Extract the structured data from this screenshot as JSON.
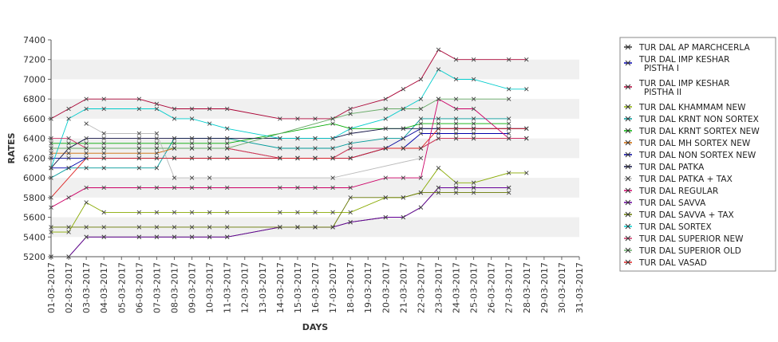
{
  "chart_data": {
    "type": "line",
    "title": "",
    "xlabel": "DAYS",
    "ylabel": "RATES",
    "ylim": [
      5200,
      7400
    ],
    "yticks": [
      5200,
      5400,
      5600,
      5800,
      6000,
      6200,
      6400,
      6600,
      6800,
      7000,
      7200,
      7400
    ],
    "grid": "horizontal alternating bands",
    "legend_position": "right",
    "categories": [
      "01-03-2017",
      "02-03-2017",
      "03-03-2017",
      "04-03-2017",
      "05-03-2017",
      "06-03-2017",
      "07-03-2017",
      "08-03-2017",
      "09-03-2017",
      "10-03-2017",
      "11-03-2017",
      "12-03-2017",
      "13-03-2017",
      "14-03-2017",
      "15-03-2017",
      "16-03-2017",
      "17-03-2017",
      "18-03-2017",
      "19-03-2017",
      "20-03-2017",
      "21-03-2017",
      "22-03-2017",
      "23-03-2017",
      "24-03-2017",
      "25-03-2017",
      "26-03-2017",
      "27-03-2017",
      "28-03-2017",
      "29-03-2017",
      "30-03-2017",
      "31-03-2017"
    ],
    "series": [
      {
        "name": "TUR DAL AP MARCHCERLA",
        "color": "#333333",
        "values": [
          5200,
          5200,
          5400,
          5400,
          null,
          5400,
          5400,
          5400,
          5400,
          5400,
          5400,
          null,
          null,
          5500,
          5500,
          5500,
          5500,
          5550,
          null,
          5600,
          5600,
          5700,
          5900,
          5900,
          5900,
          null,
          5900,
          null,
          null,
          null,
          null
        ]
      },
      {
        "name": "TUR DAL IMP KESHAR PISTHA I",
        "color": "#0000aa",
        "values": [
          6100,
          6100,
          6200,
          6200,
          null,
          6200,
          6200,
          6200,
          6200,
          6200,
          6200,
          null,
          null,
          6200,
          6200,
          6200,
          6200,
          6200,
          null,
          6300,
          6300,
          6450,
          6450,
          6450,
          6450,
          null,
          6450,
          null,
          null,
          null,
          null
        ]
      },
      {
        "name": "TUR DAL IMP KESHAR PISTHA II",
        "color": "#aa0033",
        "values": [
          6600,
          6700,
          6800,
          6800,
          null,
          6800,
          6750,
          6700,
          6700,
          6700,
          6700,
          null,
          null,
          6600,
          6600,
          6600,
          6600,
          6700,
          null,
          6800,
          6900,
          7000,
          7300,
          7200,
          7200,
          null,
          7200,
          7200,
          null,
          null,
          null
        ]
      },
      {
        "name": "TUR DAL KHAMMAM NEW",
        "color": "#88aa00",
        "values": [
          5450,
          5450,
          5750,
          5650,
          null,
          5650,
          5650,
          5650,
          5650,
          5650,
          5650,
          null,
          null,
          5650,
          5650,
          5650,
          5650,
          5650,
          null,
          5800,
          5800,
          5850,
          6100,
          5950,
          5950,
          null,
          6050,
          6050,
          null,
          null,
          null
        ]
      },
      {
        "name": "TUR DAL KRNT NON SORTEX",
        "color": "#009999",
        "values": [
          6000,
          6100,
          6100,
          6100,
          null,
          6100,
          6100,
          6400,
          6400,
          6400,
          6400,
          null,
          null,
          6300,
          6300,
          6300,
          6300,
          6350,
          null,
          6400,
          6400,
          6600,
          6600,
          6600,
          6600,
          null,
          6600,
          null,
          null,
          null,
          null
        ]
      },
      {
        "name": "TUR DAL KRNT SORTEX NEW",
        "color": "#00aa00",
        "values": [
          6350,
          6350,
          6350,
          6350,
          null,
          6350,
          6350,
          6350,
          6350,
          6350,
          6350,
          null,
          null,
          null,
          null,
          null,
          6550,
          6500,
          null,
          null,
          6500,
          6550,
          6550,
          6550,
          6550,
          null,
          6550,
          null,
          null,
          null,
          null
        ]
      },
      {
        "name": "TUR DAL MH SORTEX NEW",
        "color": "#cc6600",
        "values": [
          6250,
          6250,
          6250,
          6250,
          null,
          6250,
          6250,
          6300,
          6300,
          6300,
          6300,
          null,
          null,
          6200,
          6200,
          6200,
          6200,
          6300,
          null,
          6300,
          6300,
          6300,
          6400,
          6400,
          6400,
          null,
          6400,
          6400,
          null,
          null,
          null
        ]
      },
      {
        "name": "TUR DAL NON SORTEX NEW",
        "color": "#000099",
        "values": [
          6200,
          6200,
          6200,
          6200,
          null,
          6200,
          6200,
          6200,
          6200,
          6200,
          6200,
          null,
          null,
          6200,
          6200,
          6200,
          6200,
          6200,
          null,
          6300,
          6400,
          6500,
          6500,
          6500,
          6500,
          null,
          6500,
          6500,
          null,
          null,
          null
        ]
      },
      {
        "name": "TUR DAL PATKA",
        "color": "#111144",
        "values": [
          6100,
          6300,
          6400,
          6400,
          null,
          6400,
          6400,
          6400,
          6400,
          6400,
          6400,
          null,
          null,
          6400,
          6400,
          6400,
          6400,
          6450,
          null,
          6500,
          6500,
          6500,
          6500,
          6500,
          6500,
          null,
          6500,
          6500,
          null,
          null,
          null
        ]
      },
      {
        "name": "TUR DAL PATKA + TAX",
        "color": "#bbbbbb",
        "values": [
          null,
          null,
          6550,
          6450,
          null,
          6450,
          6450,
          6000,
          6000,
          6000,
          null,
          null,
          null,
          null,
          null,
          null,
          6000,
          null,
          null,
          null,
          null,
          6200,
          null,
          null,
          null,
          null,
          null,
          null,
          null,
          null,
          null
        ]
      },
      {
        "name": "TUR DAL REGULAR",
        "color": "#cc0066",
        "values": [
          5700,
          5800,
          5900,
          5900,
          null,
          5900,
          5900,
          5900,
          5900,
          5900,
          5900,
          null,
          null,
          5900,
          5900,
          5900,
          5900,
          5900,
          null,
          6000,
          6000,
          6000,
          6800,
          6700,
          6700,
          null,
          6400,
          6400,
          null,
          null,
          null
        ]
      },
      {
        "name": "TUR DAL SAVVA",
        "color": "#660099",
        "values": [
          5200,
          5200,
          5400,
          5400,
          null,
          5400,
          5400,
          5400,
          5400,
          5400,
          5400,
          null,
          null,
          5500,
          5500,
          5500,
          5500,
          5550,
          null,
          5600,
          5600,
          5700,
          5900,
          5900,
          5900,
          null,
          5900,
          null,
          null,
          null,
          null
        ]
      },
      {
        "name": "TUR DAL SAVVA + TAX",
        "color": "#667700",
        "values": [
          5500,
          5500,
          5500,
          5500,
          null,
          5500,
          5500,
          5500,
          5500,
          5500,
          5500,
          null,
          null,
          5500,
          5500,
          5500,
          5500,
          5800,
          null,
          5800,
          5800,
          5850,
          5850,
          5850,
          5850,
          null,
          5850,
          null,
          null,
          null,
          null
        ]
      },
      {
        "name": "TUR DAL SORTEX",
        "color": "#00cccc",
        "values": [
          6100,
          6600,
          6700,
          6700,
          null,
          6700,
          6700,
          6600,
          6600,
          6550,
          6500,
          null,
          null,
          6400,
          6400,
          6400,
          6400,
          6500,
          null,
          6600,
          6700,
          6800,
          7100,
          7000,
          7000,
          null,
          6900,
          6900,
          null,
          null,
          null
        ]
      },
      {
        "name": "TUR DAL SUPERIOR NEW",
        "color": "#cc3366",
        "values": [
          6400,
          6400,
          6300,
          6300,
          null,
          6300,
          6300,
          6300,
          6300,
          6300,
          6300,
          null,
          null,
          6200,
          6200,
          6200,
          6200,
          6300,
          null,
          6300,
          6300,
          6300,
          6400,
          6400,
          6400,
          null,
          6400,
          6400,
          null,
          null,
          null
        ]
      },
      {
        "name": "TUR DAL SUPERIOR OLD",
        "color": "#66aa66",
        "values": [
          6300,
          6300,
          6300,
          6300,
          null,
          6300,
          6300,
          6300,
          6300,
          6300,
          6300,
          null,
          null,
          null,
          null,
          null,
          6600,
          6650,
          null,
          6700,
          6700,
          6700,
          6800,
          6800,
          6800,
          null,
          6800,
          null,
          null,
          null,
          null
        ]
      },
      {
        "name": "TUR DAL VASAD",
        "color": "#dd2222",
        "values": [
          5800,
          null,
          6200,
          6200,
          null,
          6200,
          6200,
          6200,
          null,
          null,
          6200,
          null,
          null,
          6200,
          6200,
          6200,
          6200,
          6200,
          null,
          6300,
          6300,
          6300,
          6500,
          6500,
          6500,
          null,
          6500,
          6500,
          null,
          null,
          null
        ]
      }
    ]
  }
}
